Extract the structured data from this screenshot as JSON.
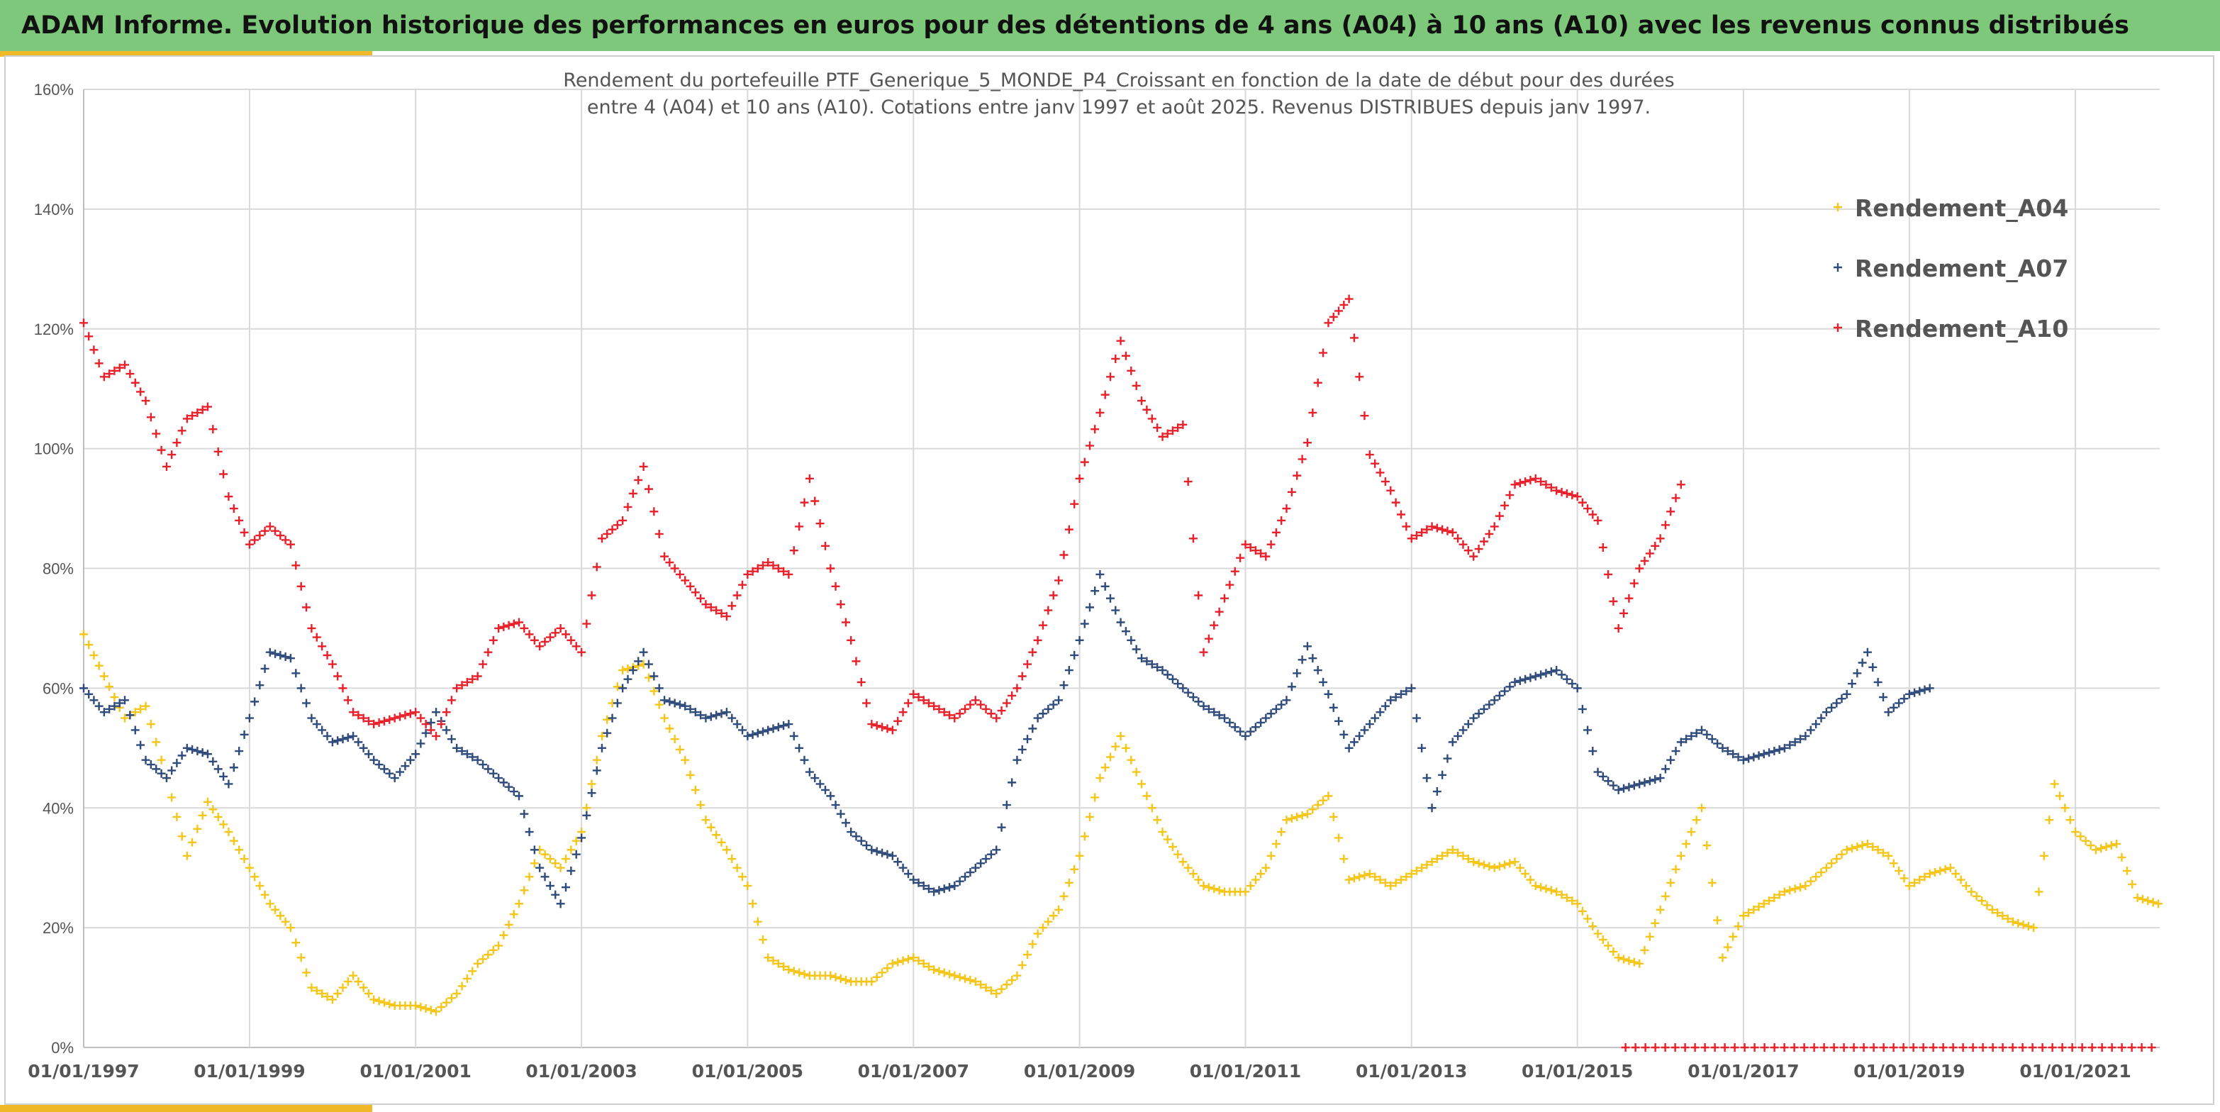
{
  "banner": {
    "title": "ADAM Informe. Evolution historique des performances en euros pour des détentions de 4 ans (A04) à 10 ans (A10) avec les revenus connus distribués"
  },
  "colors": {
    "banner_bg": "#7dc87a",
    "accent": "#f0b928",
    "a04": "#f5c518",
    "a07": "#2f4b7c",
    "a10": "#e8202a",
    "grid": "#d9d9d9"
  },
  "chart_data": {
    "type": "scatter",
    "title_line1": "Rendement du portefeuille PTF_Generique_5_MONDE_P4_Croissant en fonction de la date de début pour des durées",
    "title_line2": "entre 4 (A04) et 10 ans (A10). Cotations entre janv 1997 et août 2025. Revenus DISTRIBUES depuis janv 1997.",
    "xlabel": "",
    "ylabel": "",
    "x_range": [
      "01/01/1997",
      "07/01/2022"
    ],
    "ylim": [
      0,
      160
    ],
    "y_ticks": [
      0,
      20,
      40,
      60,
      80,
      100,
      120,
      140,
      160
    ],
    "y_tick_labels": [
      "0%",
      "20%",
      "40%",
      "60%",
      "80%",
      "100%",
      "120%",
      "140%",
      "160%"
    ],
    "x_tick_labels": [
      "01/01/1997",
      "01/01/1999",
      "01/01/2001",
      "01/01/2003",
      "01/01/2005",
      "01/01/2007",
      "01/01/2009",
      "01/01/2011",
      "01/01/2013",
      "01/01/2015",
      "01/01/2017",
      "01/01/2019",
      "01/01/2021"
    ],
    "grid": true,
    "legend_position": "top-right",
    "marker": "+",
    "series": [
      {
        "name": "Rendement_A04",
        "color": "#f5c518",
        "points": [
          [
            "01/01/1997",
            69
          ],
          [
            "01/04/1997",
            62
          ],
          [
            "01/07/1997",
            55
          ],
          [
            "01/10/1997",
            57
          ],
          [
            "01/01/1998",
            45
          ],
          [
            "01/04/1998",
            32
          ],
          [
            "01/07/1998",
            41
          ],
          [
            "01/10/1998",
            36
          ],
          [
            "01/01/1999",
            30
          ],
          [
            "01/04/1999",
            24
          ],
          [
            "01/07/1999",
            20
          ],
          [
            "01/10/1999",
            10
          ],
          [
            "01/01/2000",
            8
          ],
          [
            "01/04/2000",
            12
          ],
          [
            "01/07/2000",
            8
          ],
          [
            "01/10/2000",
            7
          ],
          [
            "01/01/2001",
            7
          ],
          [
            "01/04/2001",
            6
          ],
          [
            "01/07/2001",
            9
          ],
          [
            "01/10/2001",
            14
          ],
          [
            "01/01/2002",
            17
          ],
          [
            "01/04/2002",
            24
          ],
          [
            "01/07/2002",
            33
          ],
          [
            "01/10/2002",
            30
          ],
          [
            "01/01/2003",
            36
          ],
          [
            "01/04/2003",
            52
          ],
          [
            "01/07/2003",
            63
          ],
          [
            "01/10/2003",
            64
          ],
          [
            "01/01/2004",
            55
          ],
          [
            "01/04/2004",
            48
          ],
          [
            "01/07/2004",
            38
          ],
          [
            "01/10/2004",
            33
          ],
          [
            "01/01/2005",
            27
          ],
          [
            "01/04/2005",
            15
          ],
          [
            "01/07/2005",
            13
          ],
          [
            "01/10/2005",
            12
          ],
          [
            "01/01/2006",
            12
          ],
          [
            "01/04/2006",
            11
          ],
          [
            "01/07/2006",
            11
          ],
          [
            "01/10/2006",
            14
          ],
          [
            "01/01/2007",
            15
          ],
          [
            "01/04/2007",
            13
          ],
          [
            "01/07/2007",
            12
          ],
          [
            "01/10/2007",
            11
          ],
          [
            "01/01/2008",
            9
          ],
          [
            "01/04/2008",
            12
          ],
          [
            "01/07/2008",
            19
          ],
          [
            "01/10/2008",
            23
          ],
          [
            "01/01/2009",
            32
          ],
          [
            "01/04/2009",
            45
          ],
          [
            "01/07/2009",
            52
          ],
          [
            "01/10/2009",
            44
          ],
          [
            "01/01/2010",
            36
          ],
          [
            "01/04/2010",
            31
          ],
          [
            "01/07/2010",
            27
          ],
          [
            "01/10/2010",
            26
          ],
          [
            "01/01/2011",
            26
          ],
          [
            "01/04/2011",
            30
          ],
          [
            "01/07/2011",
            38
          ],
          [
            "01/10/2011",
            39
          ],
          [
            "01/01/2012",
            42
          ],
          [
            "01/04/2012",
            28
          ],
          [
            "01/07/2012",
            29
          ],
          [
            "01/10/2012",
            27
          ],
          [
            "01/01/2013",
            29
          ],
          [
            "01/04/2013",
            31
          ],
          [
            "01/07/2013",
            33
          ],
          [
            "01/10/2013",
            31
          ],
          [
            "01/01/2014",
            30
          ],
          [
            "01/04/2014",
            31
          ],
          [
            "01/07/2014",
            27
          ],
          [
            "01/10/2014",
            26
          ],
          [
            "01/01/2015",
            24
          ],
          [
            "01/04/2015",
            19
          ],
          [
            "01/07/2015",
            15
          ],
          [
            "01/10/2015",
            14
          ],
          [
            "01/01/2016",
            23
          ],
          [
            "01/04/2016",
            32
          ],
          [
            "01/07/2016",
            40
          ],
          [
            "01/10/2016",
            15
          ],
          [
            "01/01/2017",
            22
          ],
          [
            "01/04/2017",
            24
          ],
          [
            "01/07/2017",
            26
          ],
          [
            "01/10/2017",
            27
          ],
          [
            "01/01/2018",
            30
          ],
          [
            "01/04/2018",
            33
          ],
          [
            "01/07/2018",
            34
          ],
          [
            "01/10/2018",
            32
          ],
          [
            "01/01/2019",
            27
          ],
          [
            "01/04/2019",
            29
          ],
          [
            "01/07/2019",
            30
          ],
          [
            "01/10/2019",
            26
          ],
          [
            "01/01/2020",
            23
          ],
          [
            "01/04/2020",
            21
          ],
          [
            "01/07/2020",
            20
          ],
          [
            "01/10/2020",
            44
          ],
          [
            "01/01/2021",
            36
          ],
          [
            "01/04/2021",
            33
          ],
          [
            "01/07/2021",
            34
          ],
          [
            "01/10/2021",
            25
          ],
          [
            "01/01/2022",
            24
          ]
        ]
      },
      {
        "name": "Rendement_A07",
        "color": "#2f4b7c",
        "points": [
          [
            "01/01/1997",
            60
          ],
          [
            "01/04/1997",
            56
          ],
          [
            "01/07/1997",
            58
          ],
          [
            "01/10/1997",
            48
          ],
          [
            "01/01/1998",
            45
          ],
          [
            "01/04/1998",
            50
          ],
          [
            "01/07/1998",
            49
          ],
          [
            "01/10/1998",
            44
          ],
          [
            "01/01/1999",
            55
          ],
          [
            "01/04/1999",
            66
          ],
          [
            "01/07/1999",
            65
          ],
          [
            "01/10/1999",
            55
          ],
          [
            "01/01/2000",
            51
          ],
          [
            "01/04/2000",
            52
          ],
          [
            "01/07/2000",
            48
          ],
          [
            "01/10/2000",
            45
          ],
          [
            "01/01/2001",
            49
          ],
          [
            "01/04/2001",
            56
          ],
          [
            "01/07/2001",
            50
          ],
          [
            "01/10/2001",
            48
          ],
          [
            "01/01/2002",
            45
          ],
          [
            "01/04/2002",
            42
          ],
          [
            "01/07/2002",
            30
          ],
          [
            "01/10/2002",
            24
          ],
          [
            "01/01/2003",
            35
          ],
          [
            "01/04/2003",
            50
          ],
          [
            "01/07/2003",
            60
          ],
          [
            "01/10/2003",
            66
          ],
          [
            "01/01/2004",
            58
          ],
          [
            "01/04/2004",
            57
          ],
          [
            "01/07/2004",
            55
          ],
          [
            "01/10/2004",
            56
          ],
          [
            "01/01/2005",
            52
          ],
          [
            "01/04/2005",
            53
          ],
          [
            "01/07/2005",
            54
          ],
          [
            "01/10/2005",
            46
          ],
          [
            "01/01/2006",
            42
          ],
          [
            "01/04/2006",
            36
          ],
          [
            "01/07/2006",
            33
          ],
          [
            "01/10/2006",
            32
          ],
          [
            "01/01/2007",
            28
          ],
          [
            "01/04/2007",
            26
          ],
          [
            "01/07/2007",
            27
          ],
          [
            "01/10/2007",
            30
          ],
          [
            "01/01/2008",
            33
          ],
          [
            "01/04/2008",
            48
          ],
          [
            "01/07/2008",
            55
          ],
          [
            "01/10/2008",
            58
          ],
          [
            "01/01/2009",
            68
          ],
          [
            "01/04/2009",
            79
          ],
          [
            "01/07/2009",
            71
          ],
          [
            "01/10/2009",
            65
          ],
          [
            "01/01/2010",
            63
          ],
          [
            "01/04/2010",
            60
          ],
          [
            "01/07/2010",
            57
          ],
          [
            "01/10/2010",
            55
          ],
          [
            "01/01/2011",
            52
          ],
          [
            "01/04/2011",
            55
          ],
          [
            "01/07/2011",
            58
          ],
          [
            "01/10/2011",
            67
          ],
          [
            "01/01/2012",
            59
          ],
          [
            "01/04/2012",
            50
          ],
          [
            "01/07/2012",
            54
          ],
          [
            "01/10/2012",
            58
          ],
          [
            "01/01/2013",
            60
          ],
          [
            "01/04/2013",
            40
          ],
          [
            "01/07/2013",
            51
          ],
          [
            "01/10/2013",
            55
          ],
          [
            "01/01/2014",
            58
          ],
          [
            "01/04/2014",
            61
          ],
          [
            "01/07/2014",
            62
          ],
          [
            "01/10/2014",
            63
          ],
          [
            "01/01/2015",
            60
          ],
          [
            "01/04/2015",
            46
          ],
          [
            "01/07/2015",
            43
          ],
          [
            "01/10/2015",
            44
          ],
          [
            "01/01/2016",
            45
          ],
          [
            "01/04/2016",
            51
          ],
          [
            "01/07/2016",
            53
          ],
          [
            "01/10/2016",
            50
          ],
          [
            "01/01/2017",
            48
          ],
          [
            "01/04/2017",
            49
          ],
          [
            "01/07/2017",
            50
          ],
          [
            "01/10/2017",
            52
          ],
          [
            "01/01/2018",
            56
          ],
          [
            "01/04/2018",
            59
          ],
          [
            "01/07/2018",
            66
          ],
          [
            "01/10/2018",
            56
          ],
          [
            "01/01/2019",
            59
          ],
          [
            "01/04/2019",
            60
          ]
        ]
      },
      {
        "name": "Rendement_A10",
        "color": "#e8202a",
        "points": [
          [
            "01/01/1997",
            121
          ],
          [
            "01/04/1997",
            112
          ],
          [
            "01/07/1997",
            114
          ],
          [
            "01/10/1997",
            108
          ],
          [
            "01/01/1998",
            97
          ],
          [
            "01/04/1998",
            105
          ],
          [
            "01/07/1998",
            107
          ],
          [
            "01/10/1998",
            92
          ],
          [
            "01/01/1999",
            84
          ],
          [
            "01/04/1999",
            87
          ],
          [
            "01/07/1999",
            84
          ],
          [
            "01/10/1999",
            70
          ],
          [
            "01/01/2000",
            64
          ],
          [
            "01/04/2000",
            56
          ],
          [
            "01/07/2000",
            54
          ],
          [
            "01/10/2000",
            55
          ],
          [
            "01/01/2001",
            56
          ],
          [
            "01/04/2001",
            52
          ],
          [
            "01/07/2001",
            60
          ],
          [
            "01/10/2001",
            62
          ],
          [
            "01/01/2002",
            70
          ],
          [
            "01/04/2002",
            71
          ],
          [
            "01/07/2002",
            67
          ],
          [
            "01/10/2002",
            70
          ],
          [
            "01/01/2003",
            66
          ],
          [
            "01/04/2003",
            85
          ],
          [
            "01/07/2003",
            88
          ],
          [
            "01/10/2003",
            97
          ],
          [
            "01/01/2004",
            82
          ],
          [
            "01/04/2004",
            78
          ],
          [
            "01/07/2004",
            74
          ],
          [
            "01/10/2004",
            72
          ],
          [
            "01/01/2005",
            79
          ],
          [
            "01/04/2005",
            81
          ],
          [
            "01/07/2005",
            79
          ],
          [
            "01/10/2005",
            95
          ],
          [
            "01/01/2006",
            80
          ],
          [
            "01/04/2006",
            68
          ],
          [
            "01/07/2006",
            54
          ],
          [
            "01/10/2006",
            53
          ],
          [
            "01/01/2007",
            59
          ],
          [
            "01/04/2007",
            57
          ],
          [
            "01/07/2007",
            55
          ],
          [
            "01/10/2007",
            58
          ],
          [
            "01/01/2008",
            55
          ],
          [
            "01/04/2008",
            60
          ],
          [
            "01/07/2008",
            68
          ],
          [
            "01/10/2008",
            78
          ],
          [
            "01/01/2009",
            95
          ],
          [
            "01/04/2009",
            106
          ],
          [
            "01/07/2009",
            118
          ],
          [
            "01/10/2009",
            108
          ],
          [
            "01/01/2010",
            102
          ],
          [
            "01/04/2010",
            104
          ],
          [
            "01/07/2010",
            66
          ],
          [
            "01/10/2010",
            75
          ],
          [
            "01/01/2011",
            84
          ],
          [
            "01/04/2011",
            82
          ],
          [
            "01/07/2011",
            90
          ],
          [
            "01/10/2011",
            101
          ],
          [
            "01/01/2012",
            121
          ],
          [
            "01/04/2012",
            125
          ],
          [
            "01/07/2012",
            99
          ],
          [
            "01/10/2012",
            93
          ],
          [
            "01/01/2013",
            85
          ],
          [
            "01/04/2013",
            87
          ],
          [
            "01/07/2013",
            86
          ],
          [
            "01/10/2013",
            82
          ],
          [
            "01/01/2014",
            87
          ],
          [
            "01/04/2014",
            94
          ],
          [
            "01/07/2014",
            95
          ],
          [
            "01/10/2014",
            93
          ],
          [
            "01/01/2015",
            92
          ],
          [
            "01/04/2015",
            88
          ],
          [
            "01/07/2015",
            70
          ],
          [
            "01/10/2015",
            80
          ],
          [
            "01/01/2016",
            85
          ],
          [
            "01/04/2016",
            94
          ]
        ]
      }
    ],
    "zero_band": {
      "color": "#e8202a",
      "from": "01/08/2015",
      "to": "01/01/2022",
      "value": 0
    }
  }
}
